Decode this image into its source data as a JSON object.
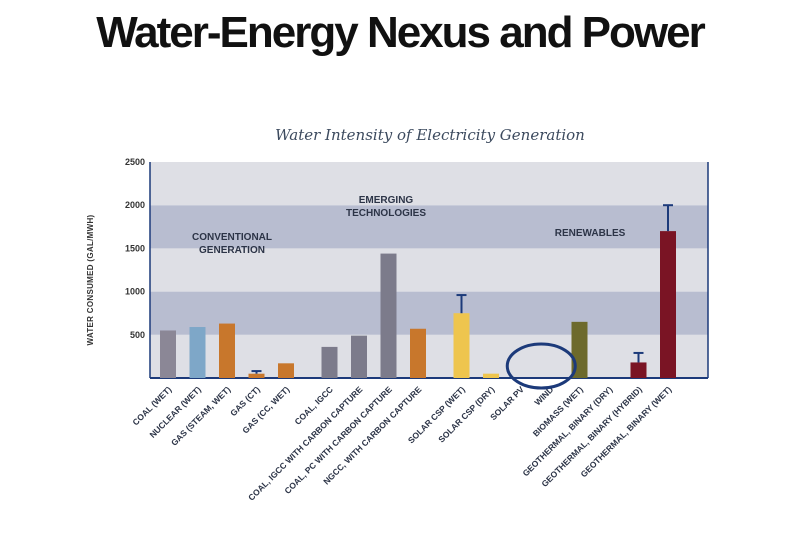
{
  "slide": {
    "title": "Water-Energy Nexus and Power"
  },
  "chart_data": {
    "type": "bar",
    "title": "Water Intensity of Electricity Generation",
    "ylabel": "WATER CONSUMED (GAL/MWH)",
    "xlabel": "",
    "ylim": [
      0,
      2500
    ],
    "yticks": [
      500,
      1000,
      1500,
      2000,
      2500
    ],
    "groups": [
      {
        "label": [
          "CONVENTIONAL",
          "GENERATION"
        ],
        "categories": [
          "COAL (WET)",
          "NUCLEAR (WET)",
          "GAS (STEAM, WET)",
          "GAS (CT)",
          "GAS (CC, WET)"
        ]
      },
      {
        "label": [
          "EMERGING",
          "TECHNOLOGIES"
        ],
        "categories": [
          "COAL, IGCC",
          "COAL, IGCC WITH CARBON CAPTURE",
          "COAL, PC WITH CARBON CAPTURE",
          "NGCC, WITH CARBON CAPTURE"
        ]
      },
      {
        "label": [
          "RENEWABLES"
        ],
        "categories": [
          "SOLAR CSP (WET)",
          "SOLAR CSP (DRY)",
          "SOLAR PV",
          "WIND",
          "BIOMASS (WET)",
          "GEOTHERMAL, BINARY (DRY)",
          "GEOTHERMAL, BINARY (HYBRID)",
          "GEOTHERMAL, BINARY (WET)"
        ]
      }
    ],
    "categories": [
      "COAL (WET)",
      "NUCLEAR (WET)",
      "GAS (STEAM, WET)",
      "GAS (CT)",
      "GAS (CC, WET)",
      "COAL, IGCC",
      "COAL, IGCC WITH CARBON CAPTURE",
      "COAL, PC WITH CARBON CAPTURE",
      "NGCC, WITH CARBON CAPTURE",
      "SOLAR CSP (WET)",
      "SOLAR CSP (DRY)",
      "SOLAR PV",
      "WIND",
      "BIOMASS (WET)",
      "GEOTHERMAL, BINARY (DRY)",
      "GEOTHERMAL, BINARY (HYBRID)",
      "GEOTHERMAL, BINARY (WET)"
    ],
    "values": [
      550,
      590,
      630,
      50,
      170,
      360,
      490,
      1440,
      570,
      750,
      50,
      0,
      0,
      650,
      0,
      180,
      1700
    ],
    "error_high": [
      null,
      null,
      null,
      80,
      null,
      null,
      null,
      null,
      null,
      960,
      null,
      null,
      null,
      null,
      null,
      290,
      2000
    ],
    "colors": [
      "#8b8796",
      "#7ea7c8",
      "#c8772c",
      "#c8772c",
      "#c8772c",
      "#7c7b8b",
      "#7c7b8b",
      "#7c7b8b",
      "#c8772c",
      "#eec54e",
      "#eec54e",
      "#eec54e",
      "#eec54e",
      "#6d6a2c",
      "#7a1424",
      "#7a1424",
      "#7a1424"
    ],
    "error_color": "#1c3a7a",
    "band_colors": {
      "light": "#dedfe5",
      "dark": "#b8bdd0"
    },
    "highlight": {
      "target": "WIND",
      "shape": "ellipse",
      "color": "#1c3a7a"
    },
    "legend": "none"
  }
}
